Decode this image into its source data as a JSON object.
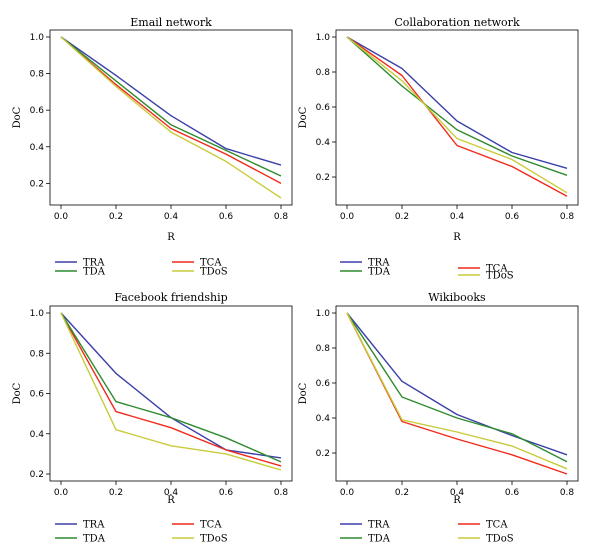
{
  "colors": {
    "TRA": "#3b3fa8",
    "TCA": "#f02a1c",
    "TDA": "#2e8b2e",
    "TDoS": "#c8cc3a"
  },
  "chart_data": [
    {
      "type": "line",
      "title": "Email network",
      "xlabel": "R",
      "ylabel": "DoC",
      "x": [
        0.0,
        0.2,
        0.4,
        0.6,
        0.8
      ],
      "xticks": [
        "0.0",
        "0.2",
        "0.4",
        "0.6",
        "0.8"
      ],
      "yticks": [
        "0.2",
        "0.4",
        "0.6",
        "0.8",
        "1.0"
      ],
      "yrange": [
        0.12,
        1.0
      ],
      "series": [
        {
          "name": "TRA",
          "values": [
            1.0,
            0.79,
            0.57,
            0.39,
            0.3
          ]
        },
        {
          "name": "TCA",
          "values": [
            1.0,
            0.74,
            0.5,
            0.36,
            0.2
          ]
        },
        {
          "name": "TDA",
          "values": [
            1.0,
            0.76,
            0.52,
            0.38,
            0.24
          ]
        },
        {
          "name": "TDoS",
          "values": [
            1.0,
            0.73,
            0.48,
            0.32,
            0.12
          ]
        }
      ],
      "legend": [
        [
          "TRA",
          "TDA"
        ],
        [
          "TCA",
          "TDoS"
        ]
      ]
    },
    {
      "type": "line",
      "title": "Collaboration network",
      "xlabel": "R",
      "ylabel": "DoC",
      "x": [
        0.0,
        0.2,
        0.4,
        0.6,
        0.8
      ],
      "xticks": [
        "0.0",
        "0.2",
        "0.4",
        "0.6",
        "0.8"
      ],
      "yticks": [
        "0.2",
        "0.4",
        "0.6",
        "0.8",
        "1.0"
      ],
      "yrange": [
        0.08,
        1.0
      ],
      "series": [
        {
          "name": "TRA",
          "values": [
            1.0,
            0.82,
            0.52,
            0.34,
            0.25
          ]
        },
        {
          "name": "TCA",
          "values": [
            1.0,
            0.78,
            0.38,
            0.26,
            0.09
          ]
        },
        {
          "name": "TDA",
          "values": [
            1.0,
            0.72,
            0.47,
            0.32,
            0.21
          ]
        },
        {
          "name": "TDoS",
          "values": [
            1.0,
            0.75,
            0.42,
            0.3,
            0.11
          ]
        }
      ],
      "legend": [
        [
          "TRA",
          "TDA"
        ],
        [
          "TCA",
          "TDoS"
        ]
      ]
    },
    {
      "type": "line",
      "title": "Facebook friendship",
      "xlabel": "R",
      "ylabel": "DoC",
      "x": [
        0.0,
        0.2,
        0.4,
        0.6,
        0.8
      ],
      "xticks": [
        "0.0",
        "0.2",
        "0.4",
        "0.6",
        "0.8"
      ],
      "yticks": [
        "0.2",
        "0.4",
        "0.6",
        "0.8",
        "1.0"
      ],
      "yrange": [
        0.2,
        1.0
      ],
      "series": [
        {
          "name": "TRA",
          "values": [
            1.0,
            0.7,
            0.48,
            0.32,
            0.28
          ]
        },
        {
          "name": "TCA",
          "values": [
            1.0,
            0.51,
            0.43,
            0.32,
            0.24
          ]
        },
        {
          "name": "TDA",
          "values": [
            1.0,
            0.56,
            0.48,
            0.38,
            0.26
          ]
        },
        {
          "name": "TDoS",
          "values": [
            1.0,
            0.42,
            0.34,
            0.3,
            0.22
          ]
        }
      ],
      "legend": [
        [
          "TRA",
          "TDA"
        ],
        [
          "TCA",
          "TDoS"
        ]
      ]
    },
    {
      "type": "line",
      "title": "Wikibooks",
      "xlabel": "R",
      "ylabel": "DoC",
      "x": [
        0.0,
        0.2,
        0.4,
        0.6,
        0.8
      ],
      "xticks": [
        "0.0",
        "0.2",
        "0.4",
        "0.6",
        "0.8"
      ],
      "yticks": [
        "0.2",
        "0.4",
        "0.6",
        "0.8",
        "1.0"
      ],
      "yrange": [
        0.08,
        1.0
      ],
      "series": [
        {
          "name": "TRA",
          "values": [
            1.0,
            0.61,
            0.42,
            0.3,
            0.19
          ]
        },
        {
          "name": "TCA",
          "values": [
            1.0,
            0.38,
            0.28,
            0.19,
            0.08
          ]
        },
        {
          "name": "TDA",
          "values": [
            1.0,
            0.52,
            0.4,
            0.31,
            0.15
          ]
        },
        {
          "name": "TDoS",
          "values": [
            1.0,
            0.39,
            0.32,
            0.24,
            0.11
          ]
        }
      ],
      "legend": [
        [
          "TRA",
          "TDA"
        ],
        [
          "TCA",
          "TDoS"
        ]
      ]
    }
  ]
}
